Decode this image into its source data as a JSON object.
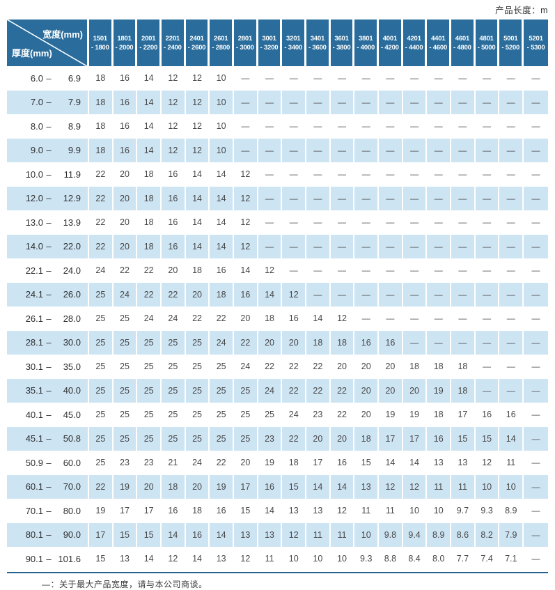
{
  "meta": {
    "product_length_note": "产品长度：m"
  },
  "footnote": {
    "text": "—：关于最大产品宽度，请与本公司商谈。"
  },
  "colors": {
    "header_bg": "#2a6d9c",
    "stripe_bg": "#cde4f3",
    "rule": "#24618f",
    "text": "#3d3d3d",
    "header_text": "#ffffff"
  },
  "table": {
    "width_label": "宽度(mm)",
    "thickness_label": "厚度(mm)",
    "range_separator": "–",
    "dash": "—",
    "columns": [
      {
        "line1": "1501",
        "line2": "- 1800"
      },
      {
        "line1": "1801",
        "line2": "- 2000"
      },
      {
        "line1": "2001",
        "line2": "- 2200"
      },
      {
        "line1": "2201",
        "line2": "- 2400"
      },
      {
        "line1": "2401",
        "line2": "- 2600"
      },
      {
        "line1": "2601",
        "line2": "- 2800"
      },
      {
        "line1": "2801",
        "line2": "- 3000"
      },
      {
        "line1": "3001",
        "line2": "- 3200"
      },
      {
        "line1": "3201",
        "line2": "- 3400"
      },
      {
        "line1": "3401",
        "line2": "- 3600"
      },
      {
        "line1": "3601",
        "line2": "- 3800"
      },
      {
        "line1": "3801",
        "line2": "- 4000"
      },
      {
        "line1": "4001",
        "line2": "- 4200"
      },
      {
        "line1": "4201",
        "line2": "- 4400"
      },
      {
        "line1": "4401",
        "line2": "- 4600"
      },
      {
        "line1": "4601",
        "line2": "- 4800"
      },
      {
        "line1": "4801",
        "line2": "- 5000"
      },
      {
        "line1": "5001",
        "line2": "- 5200"
      },
      {
        "line1": "5201",
        "line2": "- 5300"
      }
    ],
    "rows": [
      {
        "min": "6.0",
        "max": "6.9",
        "values": [
          "18",
          "16",
          "14",
          "12",
          "12",
          "10",
          "—",
          "—",
          "—",
          "—",
          "—",
          "—",
          "—",
          "—",
          "—",
          "—",
          "—",
          "—",
          "—"
        ]
      },
      {
        "min": "7.0",
        "max": "7.9",
        "values": [
          "18",
          "16",
          "14",
          "12",
          "12",
          "10",
          "—",
          "—",
          "—",
          "—",
          "—",
          "—",
          "—",
          "—",
          "—",
          "—",
          "—",
          "—",
          "—"
        ]
      },
      {
        "min": "8.0",
        "max": "8.9",
        "values": [
          "18",
          "16",
          "14",
          "12",
          "12",
          "10",
          "—",
          "—",
          "—",
          "—",
          "—",
          "—",
          "—",
          "—",
          "—",
          "—",
          "—",
          "—",
          "—"
        ]
      },
      {
        "min": "9.0",
        "max": "9.9",
        "values": [
          "18",
          "16",
          "14",
          "12",
          "12",
          "10",
          "—",
          "—",
          "—",
          "—",
          "—",
          "—",
          "—",
          "—",
          "—",
          "—",
          "—",
          "—",
          "—"
        ]
      },
      {
        "min": "10.0",
        "max": "11.9",
        "values": [
          "22",
          "20",
          "18",
          "16",
          "14",
          "14",
          "12",
          "—",
          "—",
          "—",
          "—",
          "—",
          "—",
          "—",
          "—",
          "—",
          "—",
          "—",
          "—"
        ]
      },
      {
        "min": "12.0",
        "max": "12.9",
        "values": [
          "22",
          "20",
          "18",
          "16",
          "14",
          "14",
          "12",
          "—",
          "—",
          "—",
          "—",
          "—",
          "—",
          "—",
          "—",
          "—",
          "—",
          "—",
          "—"
        ]
      },
      {
        "min": "13.0",
        "max": "13.9",
        "values": [
          "22",
          "20",
          "18",
          "16",
          "14",
          "14",
          "12",
          "—",
          "—",
          "—",
          "—",
          "—",
          "—",
          "—",
          "—",
          "—",
          "—",
          "—",
          "—"
        ]
      },
      {
        "min": "14.0",
        "max": "22.0",
        "values": [
          "22",
          "20",
          "18",
          "16",
          "14",
          "14",
          "12",
          "—",
          "—",
          "—",
          "—",
          "—",
          "—",
          "—",
          "—",
          "—",
          "—",
          "—",
          "—"
        ]
      },
      {
        "min": "22.1",
        "max": "24.0",
        "values": [
          "24",
          "22",
          "22",
          "20",
          "18",
          "16",
          "14",
          "12",
          "—",
          "—",
          "—",
          "—",
          "—",
          "—",
          "—",
          "—",
          "—",
          "—",
          "—"
        ]
      },
      {
        "min": "24.1",
        "max": "26.0",
        "values": [
          "25",
          "24",
          "22",
          "22",
          "20",
          "18",
          "16",
          "14",
          "12",
          "—",
          "—",
          "—",
          "—",
          "—",
          "—",
          "—",
          "—",
          "—",
          "—"
        ]
      },
      {
        "min": "26.1",
        "max": "28.0",
        "values": [
          "25",
          "25",
          "24",
          "24",
          "22",
          "22",
          "20",
          "18",
          "16",
          "14",
          "12",
          "—",
          "—",
          "—",
          "—",
          "—",
          "—",
          "—",
          "—"
        ]
      },
      {
        "min": "28.1",
        "max": "30.0",
        "values": [
          "25",
          "25",
          "25",
          "25",
          "25",
          "24",
          "22",
          "20",
          "20",
          "18",
          "18",
          "16",
          "16",
          "—",
          "—",
          "—",
          "—",
          "—",
          "—"
        ]
      },
      {
        "min": "30.1",
        "max": "35.0",
        "values": [
          "25",
          "25",
          "25",
          "25",
          "25",
          "25",
          "24",
          "22",
          "22",
          "22",
          "20",
          "20",
          "20",
          "18",
          "18",
          "18",
          "—",
          "—",
          "—"
        ]
      },
      {
        "min": "35.1",
        "max": "40.0",
        "values": [
          "25",
          "25",
          "25",
          "25",
          "25",
          "25",
          "25",
          "24",
          "22",
          "22",
          "22",
          "20",
          "20",
          "20",
          "19",
          "18",
          "—",
          "—",
          "—"
        ]
      },
      {
        "min": "40.1",
        "max": "45.0",
        "values": [
          "25",
          "25",
          "25",
          "25",
          "25",
          "25",
          "25",
          "25",
          "24",
          "23",
          "22",
          "20",
          "19",
          "19",
          "18",
          "17",
          "16",
          "16",
          "—"
        ]
      },
      {
        "min": "45.1",
        "max": "50.8",
        "values": [
          "25",
          "25",
          "25",
          "25",
          "25",
          "25",
          "25",
          "23",
          "22",
          "20",
          "20",
          "18",
          "17",
          "17",
          "16",
          "15",
          "15",
          "14",
          "—"
        ]
      },
      {
        "min": "50.9",
        "max": "60.0",
        "values": [
          "25",
          "23",
          "23",
          "21",
          "24",
          "22",
          "20",
          "19",
          "18",
          "17",
          "16",
          "15",
          "14",
          "14",
          "13",
          "13",
          "12",
          "11",
          "—"
        ]
      },
      {
        "min": "60.1",
        "max": "70.0",
        "values": [
          "22",
          "19",
          "20",
          "18",
          "20",
          "19",
          "17",
          "16",
          "15",
          "14",
          "14",
          "13",
          "12",
          "12",
          "11",
          "11",
          "10",
          "10",
          "—"
        ]
      },
      {
        "min": "70.1",
        "max": "80.0",
        "values": [
          "19",
          "17",
          "17",
          "16",
          "18",
          "16",
          "15",
          "14",
          "13",
          "13",
          "12",
          "11",
          "11",
          "10",
          "10",
          "9.7",
          "9.3",
          "8.9",
          "—"
        ]
      },
      {
        "min": "80.1",
        "max": "90.0",
        "values": [
          "17",
          "15",
          "15",
          "14",
          "16",
          "14",
          "13",
          "13",
          "12",
          "11",
          "11",
          "10",
          "9.8",
          "9.4",
          "8.9",
          "8.6",
          "8.2",
          "7.9",
          "—"
        ]
      },
      {
        "min": "90.1",
        "max": "101.6",
        "values": [
          "15",
          "13",
          "14",
          "12",
          "14",
          "13",
          "12",
          "11",
          "10",
          "10",
          "10",
          "9.3",
          "8.8",
          "8.4",
          "8.0",
          "7.7",
          "7.4",
          "7.1",
          "—"
        ]
      }
    ]
  }
}
